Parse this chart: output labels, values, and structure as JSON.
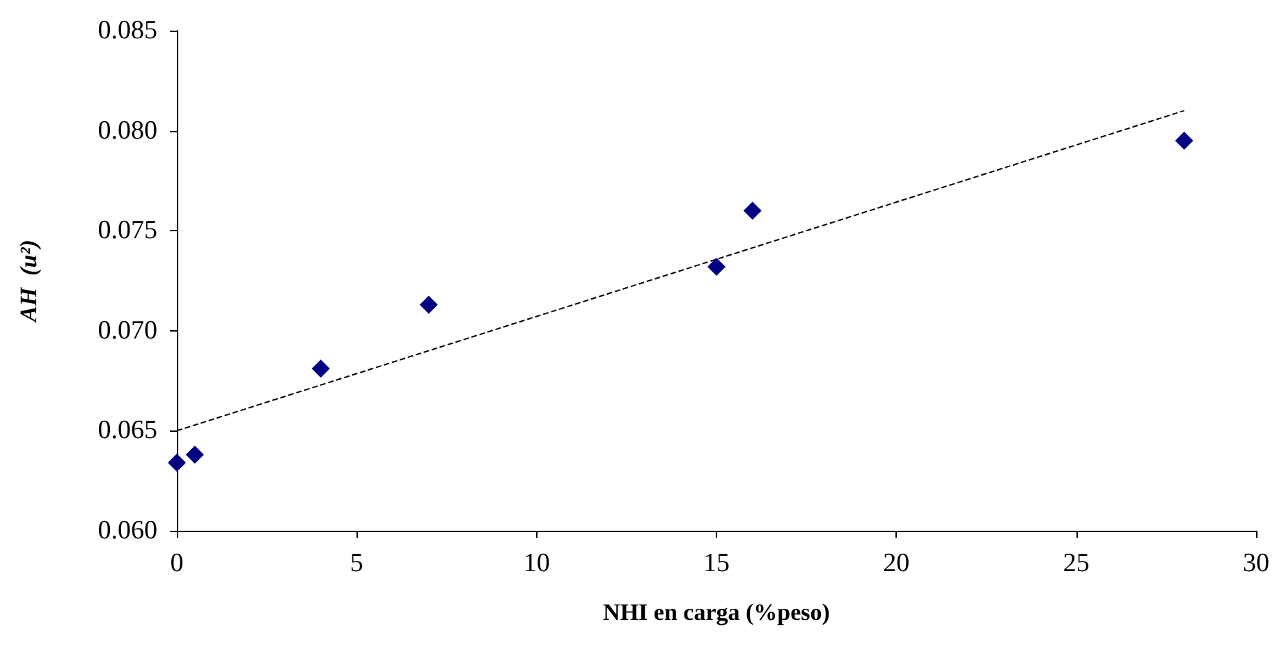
{
  "chart_data": {
    "type": "scatter",
    "xlabel": "NHI en carga (%peso)",
    "ylabel": "AH  (u²)",
    "xlim": [
      0,
      30
    ],
    "xticks": [
      0,
      5,
      10,
      15,
      20,
      25,
      30
    ],
    "ylim": [
      0.06,
      0.085
    ],
    "yticks": [
      {
        "value": 0.06,
        "label": "0.060"
      },
      {
        "value": 0.065,
        "label": "0.065"
      },
      {
        "value": 0.07,
        "label": "0.070"
      },
      {
        "value": 0.075,
        "label": "0.075"
      },
      {
        "value": 0.08,
        "label": "0.080"
      },
      {
        "value": 0.085,
        "label": "0.085"
      }
    ],
    "grid": false,
    "marker": "diamond",
    "series": [
      {
        "color": "#000080",
        "x": [
          0,
          0.5,
          4,
          7,
          15,
          16,
          28
        ],
        "values": [
          0.0634,
          0.0638,
          0.0681,
          0.0713,
          0.0732,
          0.076,
          0.0795
        ]
      },
      {
        "type": "line",
        "color": "#000000",
        "line_style": "dashed",
        "marker": "none",
        "x": [
          0,
          28
        ],
        "values": [
          0.065,
          0.081
        ]
      }
    ]
  }
}
